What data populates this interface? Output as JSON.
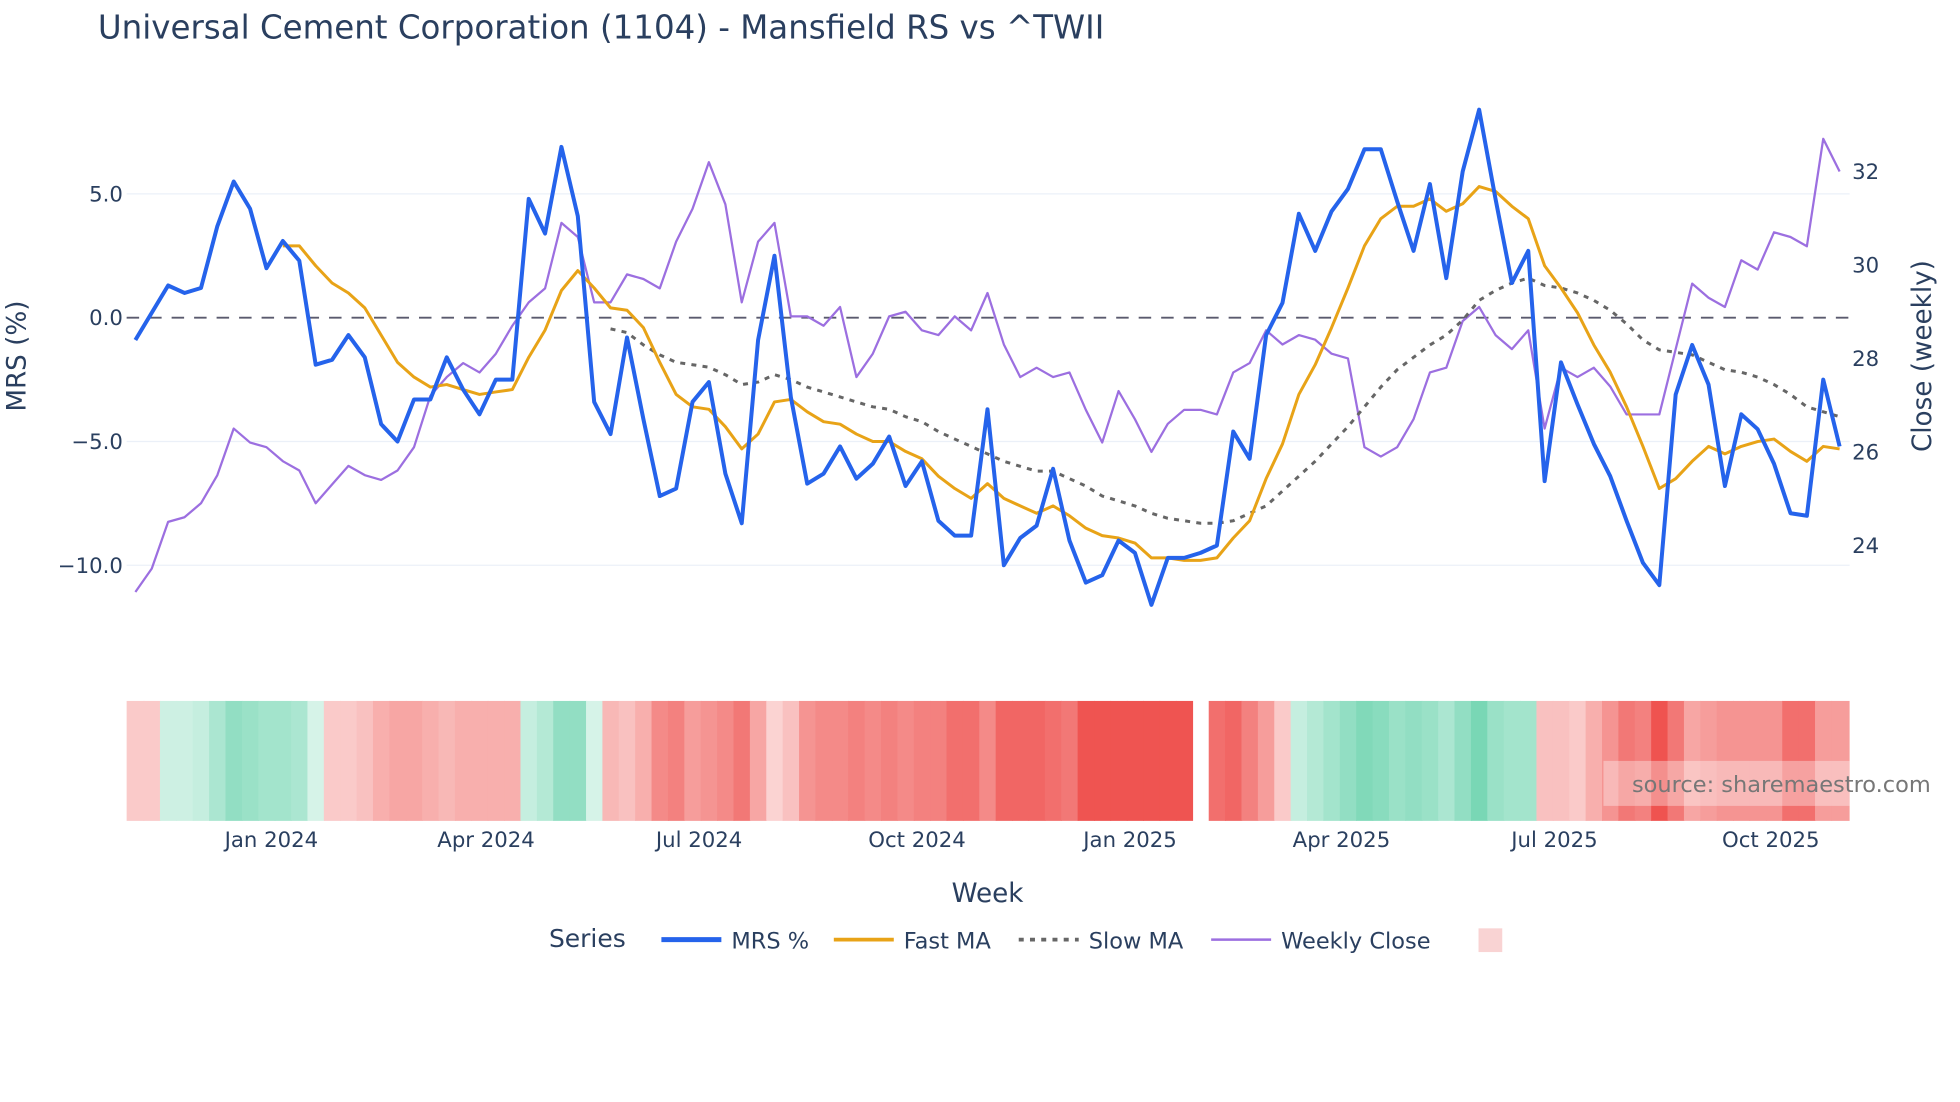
{
  "chart_data": {
    "type": "line",
    "title": "Universal Cement Corporation (1104) - Mansfield RS vs ^TWII",
    "xlabel": "Week",
    "ylabel": "MRS (%)",
    "y2label": "Close (weekly)",
    "ylim": [
      -12.4,
      9.3
    ],
    "y2lim": [
      22.3,
      33.8
    ],
    "yticks": [
      {
        "v": 5,
        "label": "5.0"
      },
      {
        "v": 0,
        "label": "0.0"
      },
      {
        "v": -5,
        "label": "−5.0"
      },
      {
        "v": -10,
        "label": "−10.0"
      }
    ],
    "y2ticks": [
      {
        "v": 32,
        "label": "32"
      },
      {
        "v": 30,
        "label": "30"
      },
      {
        "v": 28,
        "label": "28"
      },
      {
        "v": 26,
        "label": "26"
      },
      {
        "v": 24,
        "label": "24"
      }
    ],
    "x_unit": "week index",
    "xticks": [
      {
        "week": 8.3,
        "label": "Jan 2024"
      },
      {
        "week": 21.4,
        "label": "Apr 2024"
      },
      {
        "week": 34.4,
        "label": "Jul 2024"
      },
      {
        "week": 47.7,
        "label": "Oct 2024"
      },
      {
        "week": 60.7,
        "label": "Jan 2025"
      },
      {
        "week": 73.6,
        "label": "Apr 2025"
      },
      {
        "week": 86.6,
        "label": "Jul 2025"
      },
      {
        "week": 99.8,
        "label": "Oct 2025"
      }
    ],
    "zero_line": 0,
    "grid": true,
    "series": [
      {
        "name": "MRS %",
        "color": "#2563eb",
        "axis": "y",
        "values": [
          -0.9,
          0.2,
          1.3,
          1.0,
          1.2,
          3.7,
          5.5,
          4.4,
          2.0,
          3.1,
          2.3,
          -1.9,
          -1.7,
          -0.7,
          -1.6,
          -4.3,
          -5.0,
          -3.3,
          -3.3,
          -1.6,
          -2.9,
          -3.9,
          -2.5,
          -2.5,
          4.8,
          3.4,
          6.9,
          4.1,
          -3.4,
          -4.7,
          -0.8,
          -4.1,
          -7.2,
          -6.9,
          -3.4,
          -2.6,
          -6.3,
          -8.3,
          -0.9,
          2.5,
          -3.2,
          -6.7,
          -6.3,
          -5.2,
          -6.5,
          -5.9,
          -4.8,
          -6.8,
          -5.8,
          -8.2,
          -8.8,
          -8.8,
          -3.7,
          -10.0,
          -8.9,
          -8.4,
          -6.1,
          -9.0,
          -10.7,
          -10.4,
          -9.0,
          -9.5,
          -11.6,
          -9.7,
          -9.7,
          -9.5,
          -9.2,
          -4.6,
          -5.7,
          -0.7,
          0.6,
          4.2,
          2.7,
          4.3,
          5.2,
          6.8,
          6.8,
          4.7,
          2.7,
          5.4,
          1.6,
          5.9,
          8.4,
          4.8,
          1.4,
          2.7,
          -6.6,
          -1.8,
          -3.5,
          -5.1,
          -6.4,
          -8.2,
          -9.9,
          -10.8,
          -3.1,
          -1.1,
          -2.7,
          -6.8,
          -3.9,
          -4.5,
          -5.9,
          -7.9,
          -8.0,
          -2.5,
          -5.2
        ]
      },
      {
        "name": "Fast MA",
        "color": "#e8a317",
        "axis": "y",
        "values": [
          2.9,
          2.9,
          2.1,
          1.4,
          1.0,
          0.4,
          -0.7,
          -1.8,
          -2.4,
          -2.8,
          -2.7,
          -2.9,
          -3.1,
          -3.0,
          -2.9,
          -1.6,
          -0.5,
          1.1,
          1.9,
          1.2,
          0.4,
          0.3,
          -0.4,
          -1.8,
          -3.1,
          -3.6,
          -3.7,
          -4.4,
          -5.3,
          -4.7,
          -3.4,
          -3.3,
          -3.8,
          -4.2,
          -4.3,
          -4.7,
          -5.0,
          -5.0,
          -5.4,
          -5.7,
          -6.4,
          -6.9,
          -7.3,
          -6.7,
          -7.3,
          -7.6,
          -7.9,
          -7.6,
          -8.0,
          -8.5,
          -8.8,
          -8.9,
          -9.1,
          -9.7,
          -9.7,
          -9.8,
          -9.8,
          -9.7,
          -8.9,
          -8.2,
          -6.5,
          -5.1,
          -3.1,
          -1.9,
          -0.4,
          1.2,
          2.9,
          4.0,
          4.5,
          4.5,
          4.8,
          4.3,
          4.6,
          5.3,
          5.1,
          4.5,
          4.0,
          2.1,
          1.2,
          0.2,
          -1.1,
          -2.2,
          -3.6,
          -5.2,
          -6.9,
          -6.5,
          -5.8,
          -5.2,
          -5.5,
          -5.2,
          -5.0,
          -4.9,
          -5.4,
          -5.8,
          -5.2,
          -5.3
        ]
      },
      {
        "name": "Slow MA",
        "color": "#666666",
        "axis": "y",
        "dashed": true,
        "values": [
          -0.45,
          -0.6,
          -1.1,
          -1.5,
          -1.8,
          -1.9,
          -2.0,
          -2.3,
          -2.7,
          -2.6,
          -2.3,
          -2.5,
          -2.8,
          -3.0,
          -3.2,
          -3.4,
          -3.6,
          -3.7,
          -4.0,
          -4.2,
          -4.6,
          -4.9,
          -5.2,
          -5.5,
          -5.8,
          -6.0,
          -6.2,
          -6.2,
          -6.5,
          -6.8,
          -7.2,
          -7.4,
          -7.6,
          -7.9,
          -8.1,
          -8.2,
          -8.3,
          -8.3,
          -8.2,
          -7.9,
          -7.6,
          -7.0,
          -6.4,
          -5.8,
          -5.1,
          -4.4,
          -3.6,
          -2.8,
          -2.1,
          -1.6,
          -1.1,
          -0.7,
          -0.1,
          0.7,
          1.1,
          1.4,
          1.6,
          1.3,
          1.2,
          1.0,
          0.7,
          0.3,
          -0.25,
          -0.9,
          -1.3,
          -1.4,
          -1.5,
          -1.8,
          -2.1,
          -2.2,
          -2.4,
          -2.7,
          -3.1,
          -3.6,
          -3.8,
          -4.0
        ]
      },
      {
        "name": "Weekly Close",
        "color": "#9c6fe0",
        "axis": "y2",
        "values": [
          23.0,
          23.5,
          24.5,
          24.6,
          24.9,
          25.5,
          26.5,
          26.2,
          26.1,
          25.8,
          25.6,
          24.9,
          25.3,
          25.7,
          25.5,
          25.4,
          25.6,
          26.1,
          27.2,
          27.6,
          27.9,
          27.7,
          28.1,
          28.7,
          29.2,
          29.5,
          30.9,
          30.6,
          29.2,
          29.2,
          29.8,
          29.7,
          29.5,
          30.5,
          31.2,
          32.2,
          31.3,
          29.2,
          30.5,
          30.9,
          28.9,
          28.9,
          28.7,
          29.1,
          27.6,
          28.1,
          28.9,
          29.0,
          28.6,
          28.5,
          28.9,
          28.6,
          29.4,
          28.3,
          27.6,
          27.8,
          27.6,
          27.7,
          26.9,
          26.2,
          27.3,
          26.7,
          26.0,
          26.6,
          26.9,
          26.9,
          26.8,
          27.7,
          27.9,
          28.6,
          28.3,
          28.5,
          28.4,
          28.1,
          28.0,
          26.1,
          25.9,
          26.1,
          26.7,
          27.7,
          27.8,
          28.8,
          29.1,
          28.5,
          28.2,
          28.6,
          26.5,
          27.8,
          27.6,
          27.8,
          27.4,
          26.8,
          26.8,
          26.8,
          28.2,
          29.6,
          29.3,
          29.1,
          30.1,
          29.9,
          30.7,
          30.6,
          30.4,
          32.7,
          32.0
        ]
      }
    ],
    "heatmap": {
      "colors": {
        "positive": "#5ecfa6",
        "negative": "#ef5350"
      },
      "values": [
        -0.2,
        -0.2,
        0.2,
        0.2,
        0.25,
        0.4,
        0.55,
        0.5,
        0.45,
        0.45,
        0.4,
        0.15,
        -0.2,
        -0.2,
        -0.25,
        -0.35,
        -0.4,
        -0.4,
        -0.35,
        -0.3,
        -0.35,
        -0.35,
        -0.35,
        -0.35,
        0.25,
        0.35,
        0.55,
        0.55,
        0.15,
        -0.3,
        -0.25,
        -0.35,
        -0.55,
        -0.6,
        -0.45,
        -0.5,
        -0.55,
        -0.65,
        -0.4,
        -0.15,
        -0.25,
        -0.5,
        -0.55,
        -0.55,
        -0.6,
        -0.55,
        -0.6,
        -0.55,
        -0.6,
        -0.6,
        -0.7,
        -0.7,
        -0.55,
        -0.75,
        -0.75,
        -0.75,
        -0.7,
        -0.65,
        -0.85,
        -0.85,
        -0.85,
        -0.85,
        -0.85,
        -0.85,
        -0.85,
        null,
        -0.7,
        -0.75,
        -0.6,
        -0.45,
        -0.2,
        0.25,
        0.35,
        0.45,
        0.55,
        0.65,
        0.6,
        0.5,
        0.55,
        0.5,
        0.4,
        0.55,
        0.7,
        0.5,
        0.45,
        0.45,
        -0.25,
        -0.25,
        -0.2,
        -0.35,
        -0.5,
        -0.65,
        -0.6,
        -0.9,
        -0.65,
        -0.4,
        -0.45,
        -0.5,
        -0.5,
        -0.5,
        -0.5,
        -0.7,
        -0.7,
        -0.45,
        -0.45
      ]
    },
    "legend": {
      "title": "Series",
      "placement": "bottom-center",
      "items": [
        "MRS %",
        "Fast MA",
        "Slow MA",
        "Weekly Close"
      ]
    },
    "annotation": "source: sharemaestro.com"
  }
}
